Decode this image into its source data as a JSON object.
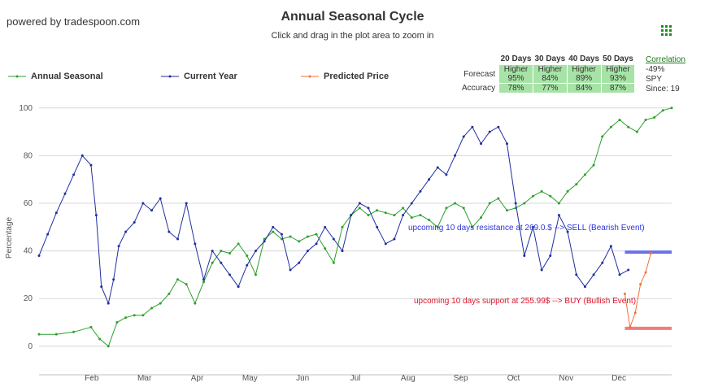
{
  "header": {
    "powered_by": "powered by tradespoon.com",
    "title": "Annual Seasonal Cycle",
    "subtitle": "Click and drag in the plot area to zoom in",
    "menu_icon": "grid-menu-icon"
  },
  "legend": [
    {
      "name": "Annual Seasonal",
      "color": "#2ca02c"
    },
    {
      "name": "Current Year",
      "color": "#1f2fa0"
    },
    {
      "name": "Predicted Price",
      "color": "#f0703a"
    }
  ],
  "stats": {
    "columns": [
      "20 Days",
      "30 Days",
      "40 Days",
      "50 Days"
    ],
    "forecast_label": "Forecast",
    "accuracy_label": "Accuracy",
    "forecast": [
      [
        "Higher",
        "95%"
      ],
      [
        "Higher",
        "84%"
      ],
      [
        "Higher",
        "89%"
      ],
      [
        "Higher",
        "93%"
      ]
    ],
    "accuracy": [
      "78%",
      "77%",
      "84%",
      "87%"
    ]
  },
  "correlation": {
    "label": "Correlation",
    "value": "-49%",
    "ticker": "SPY",
    "since": "Since: 19"
  },
  "annotations": {
    "resistance": "upcoming 10 days resistance at 269.0.$ --> SELL (Bearish Event)",
    "support": "upcoming 10 days support at 255.99$ --> BUY (Bullish Event)",
    "resistance_color": "#2b35d6",
    "support_color": "#e0132a"
  },
  "chart_data": {
    "type": "line",
    "ylabel": "Percentage",
    "ylim": [
      -12,
      103
    ],
    "yticks": [
      0,
      20,
      40,
      60,
      80,
      100
    ],
    "x_months": [
      "Feb",
      "Mar",
      "Apr",
      "May",
      "Jun",
      "Jul",
      "Aug",
      "Sep",
      "Oct",
      "Nov",
      "Dec"
    ],
    "xlim": [
      0,
      365
    ],
    "grid": true,
    "series": [
      {
        "name": "Annual Seasonal",
        "color": "#2ca02c",
        "x": [
          0,
          10,
          20,
          30,
          35,
          40,
          45,
          50,
          55,
          60,
          65,
          70,
          75,
          80,
          85,
          90,
          95,
          100,
          105,
          110,
          115,
          120,
          125,
          130,
          135,
          140,
          145,
          150,
          155,
          160,
          165,
          170,
          175,
          180,
          185,
          190,
          195,
          200,
          205,
          210,
          215,
          220,
          225,
          230,
          235,
          240,
          245,
          250,
          255,
          260,
          265,
          270,
          275,
          280,
          285,
          290,
          295,
          300,
          305,
          310,
          315,
          320,
          325,
          330,
          335,
          340,
          345,
          350,
          355,
          360,
          365
        ],
        "values": [
          5,
          5,
          6,
          8,
          3,
          0,
          10,
          12,
          13,
          13,
          16,
          18,
          22,
          28,
          26,
          18,
          27,
          35,
          40,
          39,
          43,
          38,
          30,
          45,
          48,
          45,
          46,
          44,
          46,
          47,
          41,
          35,
          50,
          55,
          58,
          55,
          57,
          56,
          55,
          58,
          54,
          55,
          53,
          50,
          58,
          60,
          58,
          50,
          54,
          60,
          62,
          57,
          58,
          60,
          63,
          65,
          63,
          60,
          65,
          68,
          72,
          76,
          88,
          92,
          95,
          92,
          90,
          95,
          96,
          99,
          100
        ]
      },
      {
        "name": "Current Year",
        "color": "#1f2fa0",
        "x": [
          0,
          5,
          10,
          15,
          20,
          25,
          30,
          33,
          36,
          40,
          43,
          46,
          50,
          55,
          60,
          65,
          70,
          75,
          80,
          85,
          90,
          95,
          100,
          105,
          110,
          115,
          120,
          125,
          130,
          135,
          140,
          145,
          150,
          155,
          160,
          165,
          170,
          175,
          180,
          185,
          190,
          195,
          200,
          205,
          210,
          215,
          220,
          225,
          230,
          235,
          240,
          245,
          250,
          255,
          260,
          265,
          270,
          275,
          280,
          285,
          290,
          295,
          300,
          305,
          310,
          315,
          320,
          325,
          330,
          335,
          340
        ],
        "values": [
          38,
          47,
          56,
          64,
          72,
          80,
          76,
          55,
          25,
          18,
          28,
          42,
          48,
          52,
          60,
          57,
          62,
          48,
          45,
          60,
          43,
          28,
          40,
          35,
          30,
          25,
          34,
          40,
          44,
          50,
          47,
          32,
          35,
          40,
          43,
          50,
          45,
          40,
          55,
          60,
          58,
          50,
          43,
          45,
          55,
          60,
          65,
          70,
          75,
          72,
          80,
          88,
          92,
          85,
          90,
          92,
          85,
          60,
          38,
          50,
          32,
          38,
          55,
          48,
          30,
          25,
          30,
          35,
          42,
          30,
          32
        ]
      },
      {
        "name": "Predicted Price",
        "color": "#f0703a",
        "x": [
          338,
          341,
          344,
          347,
          350,
          353
        ],
        "values": [
          22,
          8,
          14,
          26,
          31,
          39
        ]
      }
    ],
    "levels": [
      {
        "name": "resistance",
        "value": 39.5,
        "x_from": 338,
        "x_to": 365,
        "color": "#6b72e8"
      },
      {
        "name": "support",
        "value": 7.5,
        "x_from": 338,
        "x_to": 365,
        "color": "#f27d7d"
      }
    ]
  }
}
